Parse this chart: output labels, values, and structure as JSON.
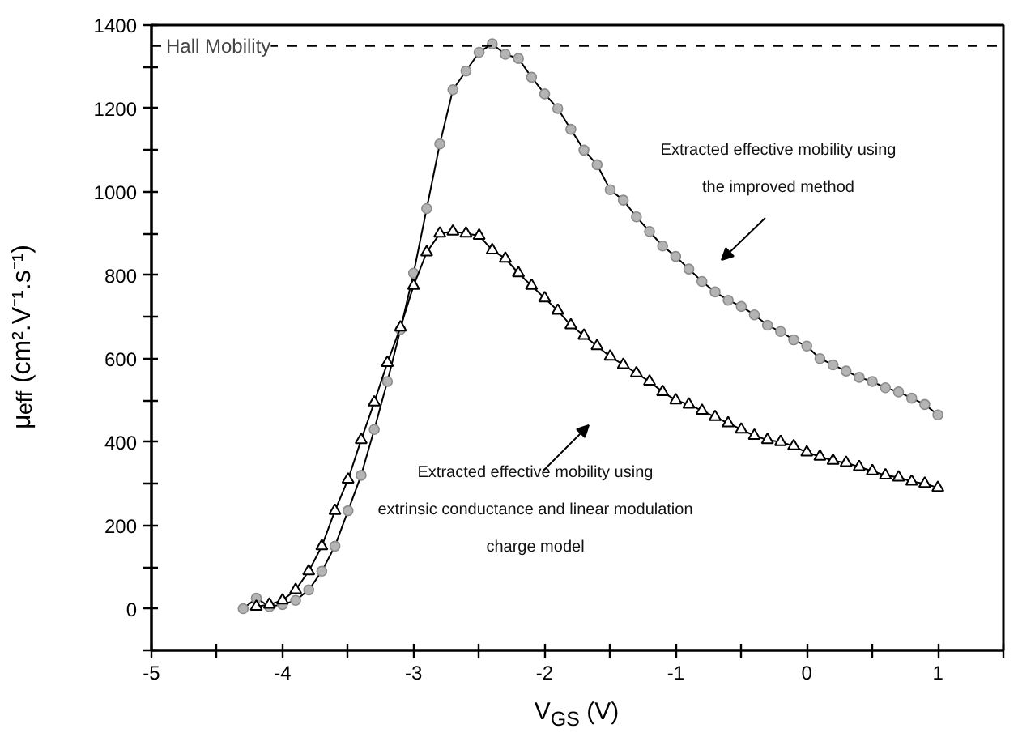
{
  "chart_data": {
    "type": "line",
    "xlabel": "V$_{GS}$ (V)",
    "ylabel": "μ$_{eff}$ (cm².V⁻¹.s⁻¹)",
    "xlim": [
      -5,
      1.5
    ],
    "ylim": [
      -100,
      1400
    ],
    "xticks": [
      -5,
      {
        "value": -4.5,
        "label": null
      },
      -4,
      {
        "value": -3.5,
        "label": null
      },
      -3,
      {
        "value": -2.5,
        "label": null
      },
      -2,
      {
        "value": -1.5,
        "label": null
      },
      -1,
      {
        "value": -0.5,
        "label": null
      },
      0,
      {
        "value": 0.5,
        "label": null
      },
      1,
      {
        "value": 1.5,
        "label": null
      }
    ],
    "yticks": [
      {
        "value": -100,
        "label": null
      },
      0,
      {
        "value": 100,
        "label": null
      },
      200,
      {
        "value": 300,
        "label": null
      },
      400,
      {
        "value": 500,
        "label": null
      },
      600,
      {
        "value": 700,
        "label": null
      },
      800,
      {
        "value": 900,
        "label": null
      },
      1000,
      {
        "value": 1100,
        "label": null
      },
      1200,
      {
        "value": 1300,
        "label": null
      },
      1400
    ],
    "grid": false,
    "line_style": "solid",
    "series": [
      {
        "color": "#b4b4b4",
        "marker": "circle",
        "x": [
          -4.3,
          -4.2,
          -4.1,
          -4.0,
          -3.9,
          -3.8,
          -3.7,
          -3.6,
          -3.5,
          -3.4,
          -3.3,
          -3.2,
          -3.1,
          -3.0,
          -2.9,
          -2.8,
          -2.7,
          -2.6,
          -2.5,
          -2.4,
          -2.3,
          -2.2,
          -2.1,
          -2.0,
          -1.9,
          -1.8,
          -1.7,
          -1.6,
          -1.5,
          -1.4,
          -1.3,
          -1.2,
          -1.1,
          -1.0,
          -0.9,
          -0.8,
          -0.7,
          -0.6,
          -0.5,
          -0.4,
          -0.3,
          -0.2,
          -0.1,
          0.0,
          0.1,
          0.2,
          0.3,
          0.4,
          0.5,
          0.6,
          0.7,
          0.8,
          0.9,
          1.0
        ],
        "values": [
          0,
          25,
          5,
          10,
          20,
          45,
          90,
          150,
          235,
          320,
          430,
          545,
          670,
          805,
          960,
          1115,
          1245,
          1290,
          1335,
          1355,
          1330,
          1320,
          1275,
          1235,
          1200,
          1150,
          1100,
          1065,
          1005,
          980,
          940,
          905,
          870,
          845,
          815,
          785,
          760,
          740,
          725,
          705,
          680,
          665,
          645,
          630,
          600,
          585,
          570,
          555,
          545,
          530,
          520,
          505,
          490,
          465
        ]
      },
      {
        "color": "#000000",
        "marker": "triangle",
        "x": [
          -4.2,
          -4.1,
          -4.0,
          -3.9,
          -3.8,
          -3.7,
          -3.6,
          -3.5,
          -3.4,
          -3.3,
          -3.2,
          -3.1,
          -3.0,
          -2.9,
          -2.8,
          -2.7,
          -2.6,
          -2.5,
          -2.4,
          -2.3,
          -2.2,
          -2.1,
          -2.0,
          -1.9,
          -1.8,
          -1.7,
          -1.6,
          -1.5,
          -1.4,
          -1.3,
          -1.2,
          -1.1,
          -1.0,
          -0.9,
          -0.8,
          -0.7,
          -0.6,
          -0.5,
          -0.4,
          -0.3,
          -0.2,
          -0.1,
          0.0,
          0.1,
          0.2,
          0.3,
          0.4,
          0.5,
          0.6,
          0.7,
          0.8,
          0.9,
          1.0
        ],
        "values": [
          5,
          10,
          20,
          45,
          90,
          150,
          235,
          310,
          405,
          495,
          590,
          675,
          775,
          855,
          900,
          905,
          900,
          895,
          860,
          840,
          805,
          775,
          745,
          715,
          680,
          655,
          630,
          605,
          585,
          565,
          545,
          520,
          500,
          490,
          475,
          460,
          445,
          430,
          415,
          405,
          400,
          390,
          375,
          365,
          355,
          350,
          340,
          330,
          320,
          315,
          305,
          300,
          290
        ]
      }
    ],
    "ref_lines": [
      {
        "axis": "y",
        "value": 1350,
        "label": "Hall Mobility",
        "color": "#000000",
        "line_style": "dashed"
      }
    ],
    "annotations": [
      "Extracted effective mobility using\nthe improved method",
      "Extracted effective mobility using\nextrinsic conductance and linear modulation\ncharge model"
    ]
  }
}
